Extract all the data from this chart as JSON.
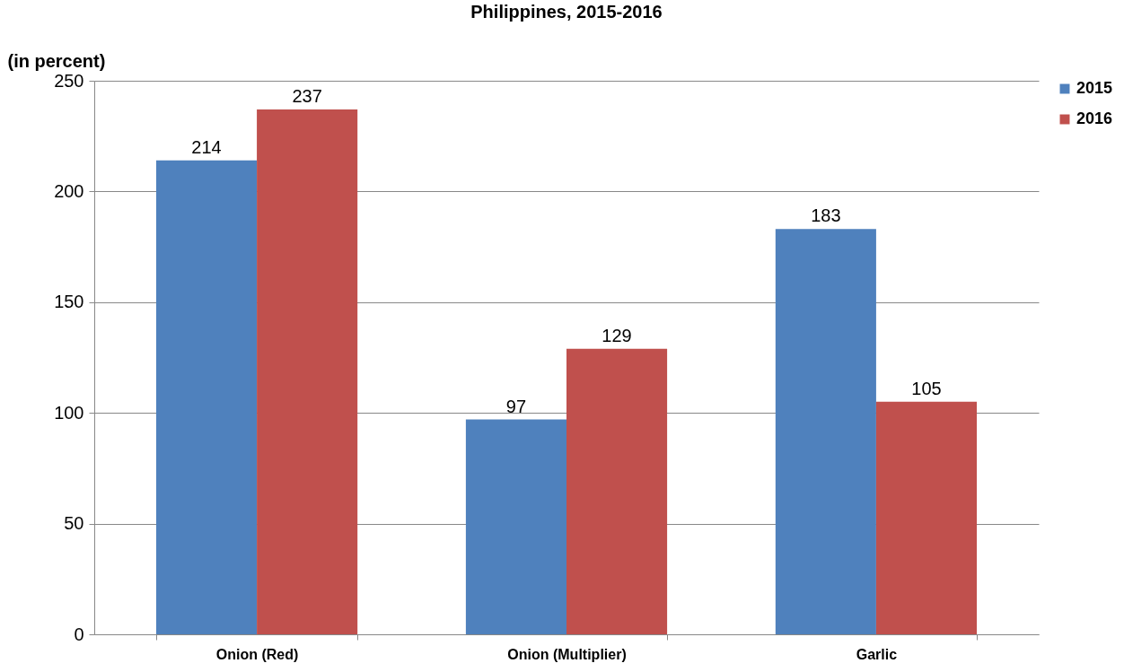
{
  "chart_data": {
    "type": "bar",
    "title": "Philippines, 2015-2016",
    "ylabel": "(in percent)",
    "categories": [
      "Onion (Red)",
      "Onion (Multiplier)",
      "Garlic"
    ],
    "series": [
      {
        "name": "2015",
        "color": "#4f81bd",
        "values": [
          214,
          97,
          183
        ]
      },
      {
        "name": "2016",
        "color": "#c0504d",
        "values": [
          237,
          129,
          105
        ]
      }
    ],
    "ylim": [
      0,
      250
    ],
    "yticks": [
      0,
      50,
      100,
      150,
      200,
      250
    ],
    "grid": "y",
    "legend": "right",
    "data_labels": true
  }
}
